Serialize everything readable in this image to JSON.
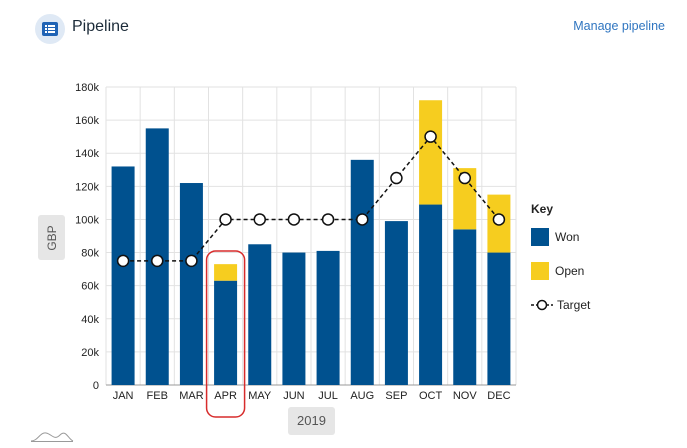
{
  "header": {
    "title": "Pipeline",
    "manage_link": "Manage pipeline",
    "icon": "list-icon"
  },
  "colors": {
    "won": "#00518f",
    "open": "#f6cd1f",
    "target_line": "#111111",
    "highlight": "#d72c2c",
    "grid": "#e2e2e2"
  },
  "chart_data": {
    "type": "bar",
    "stacked": true,
    "categories": [
      "JAN",
      "FEB",
      "MAR",
      "APR",
      "MAY",
      "JUN",
      "JUL",
      "AUG",
      "SEP",
      "OCT",
      "NOV",
      "DEC"
    ],
    "series": [
      {
        "name": "Won",
        "values": [
          132,
          155,
          122,
          63,
          85,
          80,
          81,
          136,
          99,
          109,
          94,
          80
        ]
      },
      {
        "name": "Open",
        "values": [
          0,
          0,
          0,
          10,
          0,
          0,
          0,
          0,
          0,
          63,
          37,
          35
        ]
      }
    ],
    "target": {
      "name": "Target",
      "values": [
        75,
        75,
        75,
        100,
        100,
        100,
        100,
        100,
        125,
        150,
        125,
        100
      ]
    },
    "ylabel": "GBP",
    "xlabel": "2019",
    "ylim": [
      0,
      180
    ],
    "yticks": [
      0,
      20,
      40,
      60,
      80,
      100,
      120,
      140,
      160,
      180
    ],
    "ytick_labels": [
      "0",
      "20k",
      "40k",
      "60k",
      "80k",
      "100k",
      "120k",
      "140k",
      "160k",
      "180k"
    ],
    "highlighted_category": "APR",
    "legend": {
      "title": "Key",
      "items": [
        "Won",
        "Open",
        "Target"
      ],
      "position": "right"
    }
  }
}
